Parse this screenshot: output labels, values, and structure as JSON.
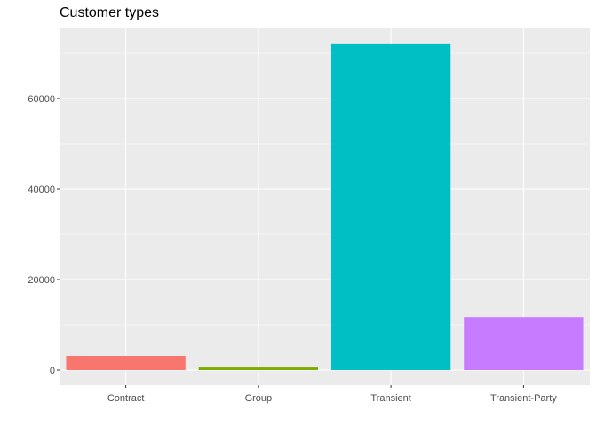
{
  "chart_data": {
    "type": "bar",
    "title": "Customer types",
    "xlabel": "",
    "ylabel": "",
    "categories": [
      "Contract",
      "Group",
      "Transient",
      "Transient-Party"
    ],
    "values": [
      3139,
      577,
      71986,
      11727
    ],
    "colors": [
      "#F8766D",
      "#7CAE00",
      "#00BFC4",
      "#C77CFF"
    ],
    "ylim": [
      0,
      72000
    ],
    "yticks": [
      0,
      20000,
      40000,
      60000
    ],
    "ytick_labels": [
      "0",
      "20000",
      "40000",
      "60000"
    ],
    "panel_background": "#EBEBEB",
    "grid": true,
    "legend": false
  }
}
